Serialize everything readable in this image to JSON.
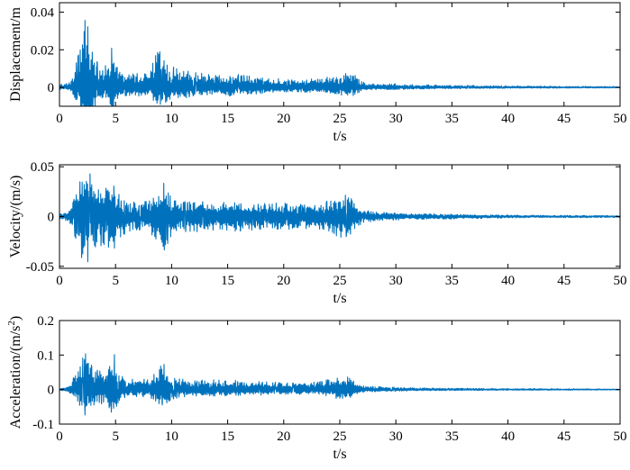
{
  "colors": {
    "series": "#0072BD",
    "axes": "#000000",
    "background": "#ffffff"
  },
  "chart_data": [
    {
      "type": "line",
      "ylabel": "Displacement/m",
      "xlabel": "t/s",
      "xlim": [
        0,
        50
      ],
      "ylim": [
        -0.01,
        0.045
      ],
      "xticks": [
        0,
        5,
        10,
        15,
        20,
        25,
        30,
        35,
        40,
        45,
        50
      ],
      "xtick_labels": [
        "0",
        "5",
        "10",
        "15",
        "20",
        "25",
        "30",
        "35",
        "40",
        "45",
        "50"
      ],
      "yticks": [
        0,
        0.02,
        0.04
      ],
      "ytick_labels": [
        "0",
        "0.02",
        "0.04"
      ],
      "grid": false,
      "envelope": {
        "t": [
          0,
          0.5,
          1,
          1.5,
          2,
          2.2,
          2.5,
          3,
          3.5,
          4,
          4.5,
          4.8,
          5,
          5.5,
          6,
          7,
          8,
          9,
          9.5,
          10,
          11,
          12,
          13,
          14,
          15,
          17,
          19,
          21,
          23,
          24,
          25,
          26,
          26.5,
          27,
          28,
          30,
          32,
          35,
          40,
          45,
          50
        ],
        "amp": [
          0.002,
          0.002,
          0.003,
          0.014,
          0.026,
          0.042,
          0.046,
          0.018,
          0.014,
          0.012,
          0.014,
          0.033,
          0.016,
          0.009,
          0.008,
          0.008,
          0.008,
          0.024,
          0.014,
          0.011,
          0.01,
          0.008,
          0.008,
          0.007,
          0.008,
          0.006,
          0.005,
          0.004,
          0.005,
          0.006,
          0.007,
          0.008,
          0.006,
          0.003,
          0.002,
          0.002,
          0.0015,
          0.0012,
          0.0008,
          0.0006,
          0.0005
        ],
        "negative_scale": 0.6,
        "samples": 2000,
        "seed": 11
      }
    },
    {
      "type": "line",
      "ylabel": "Velocity/(m/s)",
      "xlabel": "t/s",
      "xlim": [
        0,
        50
      ],
      "ylim": [
        -0.052,
        0.052
      ],
      "xticks": [
        0,
        5,
        10,
        15,
        20,
        25,
        30,
        35,
        40,
        45,
        50
      ],
      "xtick_labels": [
        "0",
        "5",
        "10",
        "15",
        "20",
        "25",
        "30",
        "35",
        "40",
        "45",
        "50"
      ],
      "yticks": [
        -0.05,
        0,
        0.05
      ],
      "ytick_labels": [
        "-0.05",
        "0",
        "0.05"
      ],
      "grid": false,
      "envelope": {
        "t": [
          0,
          0.5,
          1,
          1.5,
          2,
          2.3,
          2.6,
          3,
          3.5,
          4,
          4.5,
          5,
          5.5,
          6,
          7,
          8,
          9,
          9.3,
          10,
          11,
          12,
          13,
          14,
          15,
          17,
          19,
          21,
          23,
          24,
          25,
          26,
          26.5,
          27,
          28,
          30,
          32,
          35,
          40,
          45,
          50
        ],
        "amp": [
          0.003,
          0.004,
          0.008,
          0.025,
          0.045,
          0.052,
          0.05,
          0.033,
          0.03,
          0.03,
          0.032,
          0.034,
          0.022,
          0.015,
          0.015,
          0.016,
          0.03,
          0.036,
          0.02,
          0.016,
          0.015,
          0.016,
          0.014,
          0.016,
          0.014,
          0.014,
          0.013,
          0.013,
          0.016,
          0.023,
          0.02,
          0.014,
          0.007,
          0.005,
          0.004,
          0.003,
          0.0025,
          0.0015,
          0.0012,
          0.001
        ],
        "negative_scale": 1.0,
        "samples": 2000,
        "seed": 23
      }
    },
    {
      "type": "line",
      "ylabel": "Acceleration/(m/s",
      "ylabel_sup": "2",
      "ylabel_suffix": ")",
      "xlabel": "t/s",
      "xlim": [
        0,
        50
      ],
      "ylim": [
        -0.1,
        0.2
      ],
      "xticks": [
        0,
        5,
        10,
        15,
        20,
        25,
        30,
        35,
        40,
        45,
        50
      ],
      "xtick_labels": [
        "0",
        "5",
        "10",
        "15",
        "20",
        "25",
        "30",
        "35",
        "40",
        "45",
        "50"
      ],
      "yticks": [
        -0.1,
        0,
        0.1,
        0.2
      ],
      "ytick_labels": [
        "-0.1",
        "0",
        "0.1",
        "0.2"
      ],
      "grid": false,
      "envelope": {
        "t": [
          0,
          0.5,
          1,
          1.5,
          2,
          2.3,
          2.6,
          3,
          3.5,
          4,
          4.5,
          4.9,
          5.2,
          5.5,
          6,
          7,
          8,
          9,
          9.3,
          10,
          11,
          12,
          13,
          14,
          15,
          17,
          19,
          21,
          23,
          24,
          25,
          26,
          26.5,
          27,
          28,
          30,
          32,
          35,
          40,
          45,
          50
        ],
        "amp": [
          0.004,
          0.006,
          0.02,
          0.05,
          0.09,
          0.14,
          0.12,
          0.07,
          0.06,
          0.06,
          0.09,
          0.11,
          0.06,
          0.04,
          0.035,
          0.03,
          0.03,
          0.07,
          0.08,
          0.04,
          0.035,
          0.03,
          0.03,
          0.028,
          0.028,
          0.025,
          0.022,
          0.02,
          0.022,
          0.03,
          0.04,
          0.035,
          0.02,
          0.012,
          0.009,
          0.007,
          0.005,
          0.004,
          0.003,
          0.0025,
          0.002
        ],
        "negative_scale": 0.7,
        "samples": 2000,
        "seed": 37
      }
    }
  ]
}
